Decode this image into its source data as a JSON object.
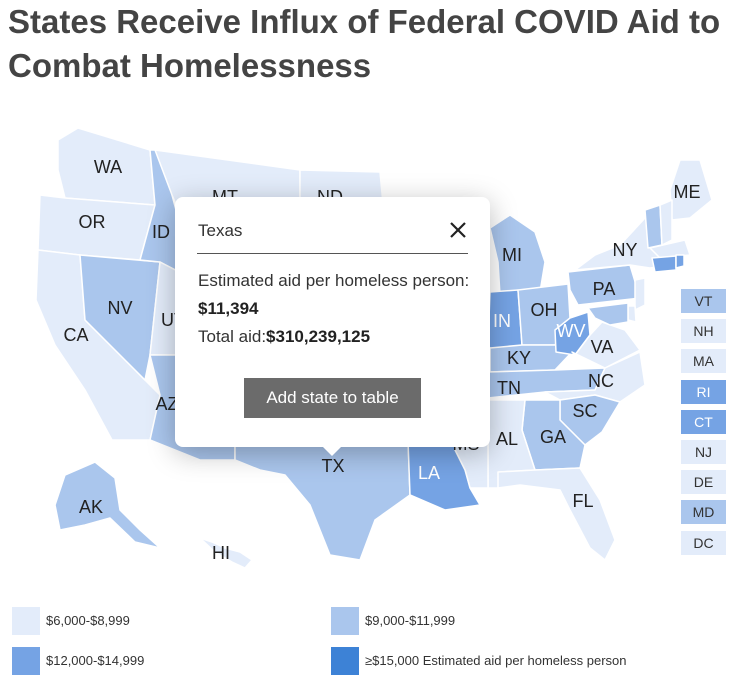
{
  "title": "States Receive Influx of Federal COVID Aid to Combat Homelessness",
  "colors": {
    "tier1": "#e3ecfa",
    "tier2": "#aac6ed",
    "tier3": "#75a3e4",
    "tier4": "#3d82d6"
  },
  "map": {
    "state_labels": [
      "WA",
      "OR",
      "CA",
      "NV",
      "ID",
      "MT",
      "ND",
      "UT",
      "AZ",
      "TX",
      "LA",
      "MS",
      "AL",
      "GA",
      "FL",
      "SC",
      "NC",
      "TN",
      "KY",
      "VA",
      "WV",
      "IN",
      "OH",
      "MI",
      "PA",
      "NY",
      "ME",
      "AK",
      "HI"
    ],
    "state_tiers": {
      "WA": 1,
      "OR": 1,
      "CA": 1,
      "NV": 2,
      "ID": 2,
      "MT": 1,
      "ND": 1,
      "UT": 1,
      "AZ": 2,
      "TX": 2,
      "LA": 3,
      "MS": 1,
      "AL": 1,
      "GA": 2,
      "FL": 1,
      "SC": 2,
      "NC": 1,
      "TN": 2,
      "KY": 2,
      "VA": 1,
      "WV": 3,
      "IN": 3,
      "OH": 2,
      "MI": 2,
      "PA": 2,
      "NY": 1,
      "ME": 1,
      "AK": 2,
      "HI": 1
    },
    "small_states": [
      {
        "abbr": "VT",
        "tier": 2
      },
      {
        "abbr": "NH",
        "tier": 1
      },
      {
        "abbr": "MA",
        "tier": 1
      },
      {
        "abbr": "RI",
        "tier": 3
      },
      {
        "abbr": "CT",
        "tier": 3
      },
      {
        "abbr": "NJ",
        "tier": 1
      },
      {
        "abbr": "DE",
        "tier": 1
      },
      {
        "abbr": "MD",
        "tier": 2
      },
      {
        "abbr": "DC",
        "tier": 1
      }
    ]
  },
  "popup": {
    "state_name": "Texas",
    "per_person_label": "Estimated aid per homeless person:",
    "per_person_value": "$11,394",
    "total_label": "Total aid:",
    "total_value": "$310,239,125",
    "add_button_label": "Add state to table"
  },
  "legend": [
    {
      "label": "$6,000-$8,999",
      "tier": 1
    },
    {
      "label": "$9,000-$11,999",
      "tier": 2
    },
    {
      "label": "$12,000-$14,999",
      "tier": 3
    },
    {
      "label": "≥$15,000 Estimated aid per homeless person",
      "tier": 4
    }
  ]
}
